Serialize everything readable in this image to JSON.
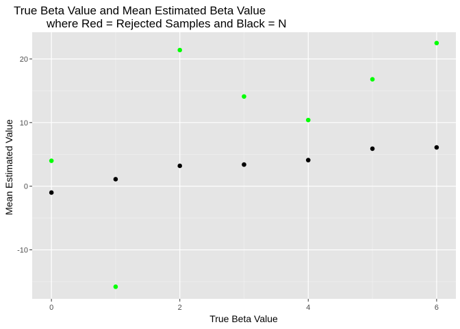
{
  "chart_data": {
    "type": "scatter",
    "title_line1": "True Beta Value and Mean Estimated Beta Value",
    "title_line2": "where Red = Rejected Samples and Black = N",
    "xlabel": "True Beta Value",
    "ylabel": "Mean Estimated Value",
    "xlim": [
      -0.3,
      6.3
    ],
    "ylim": [
      -17.7,
      24.2
    ],
    "x_ticks": [
      0,
      2,
      4,
      6
    ],
    "y_ticks": [
      -10,
      0,
      10,
      20
    ],
    "grid": true,
    "panel_color": "#e5e5e5",
    "series": [
      {
        "color": "#00ff00",
        "points": [
          {
            "x": 0,
            "y": 4.0
          },
          {
            "x": 1,
            "y": -15.8
          },
          {
            "x": 2,
            "y": 21.4
          },
          {
            "x": 3,
            "y": 14.1
          },
          {
            "x": 4,
            "y": 10.4
          },
          {
            "x": 5,
            "y": 16.8
          },
          {
            "x": 6,
            "y": 22.5
          }
        ]
      },
      {
        "color": "#000000",
        "points": [
          {
            "x": 0,
            "y": -1.0
          },
          {
            "x": 1,
            "y": 1.1
          },
          {
            "x": 2,
            "y": 3.2
          },
          {
            "x": 3,
            "y": 3.4
          },
          {
            "x": 4,
            "y": 4.1
          },
          {
            "x": 5,
            "y": 5.9
          },
          {
            "x": 6,
            "y": 6.1
          }
        ]
      }
    ]
  }
}
